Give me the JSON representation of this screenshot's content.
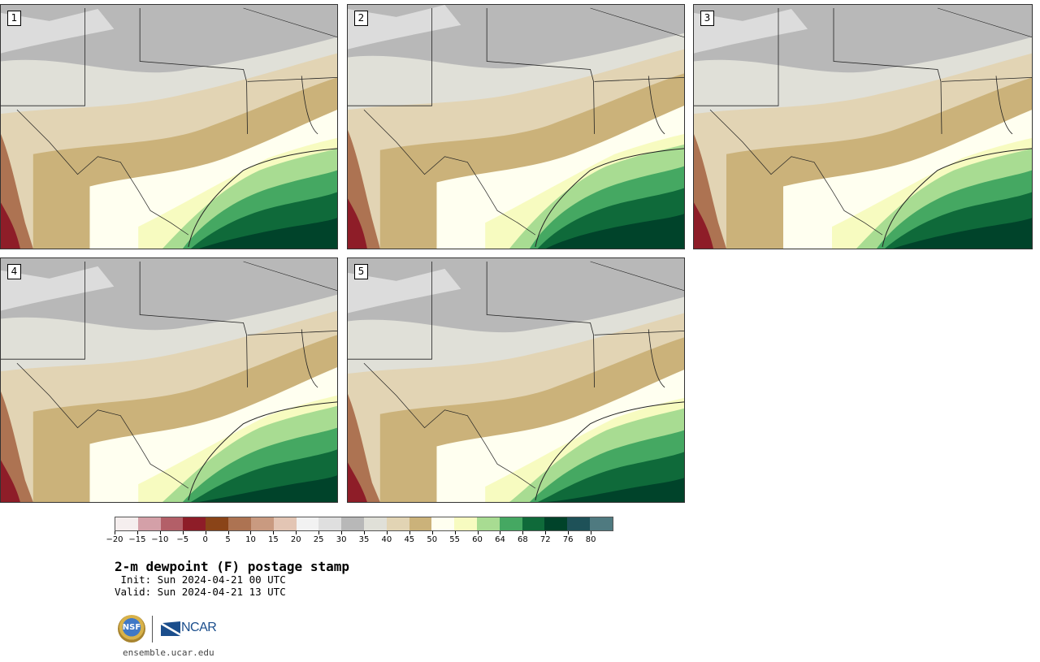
{
  "title": "2-m dewpoint (F) postage stamp",
  "init": " Init: Sun 2024-04-21 00 UTC",
  "valid": "Valid: Sun 2024-04-21 13 UTC",
  "footer_url": "ensemble.ucar.edu",
  "logos": {
    "nsf": "NSF",
    "ncar": "NCAR"
  },
  "panels": [
    {
      "number": "1"
    },
    {
      "number": "2"
    },
    {
      "number": "3"
    },
    {
      "number": "4"
    },
    {
      "number": "5"
    }
  ],
  "colorbar": {
    "ticks": [
      "-20",
      "-15",
      "-10",
      "-5",
      "0",
      "5",
      "10",
      "15",
      "20",
      "25",
      "30",
      "35",
      "40",
      "45",
      "50",
      "55",
      "60",
      "64",
      "68",
      "72",
      "76",
      "80"
    ],
    "colors": [
      "#f5eeee",
      "#d4a0a8",
      "#b35f68",
      "#8e1d28",
      "#8a4418",
      "#ad7352",
      "#c99a80",
      "#e3c5b4",
      "#f2f2f2",
      "#dfdfdf",
      "#b8b8b8",
      "#e0e0d8",
      "#e2d4b4",
      "#cbb27a",
      "#fffff0",
      "#f7fbc0",
      "#a8dc92",
      "#45a862",
      "#0f6a3a",
      "#00432a",
      "#1e5158",
      "#4f7a80"
    ]
  },
  "colors": {
    "gray_north": "#b8b8b8",
    "light_gray": "#dcdcdc",
    "pale": "#e0e0d8",
    "tan_light": "#e2d4b4",
    "tan": "#cbb27a",
    "cream": "#fffff0",
    "pale_yellow": "#f7fbc0",
    "light_green": "#a8dc92",
    "green": "#45a862",
    "dark_green": "#0f6a3a",
    "darkest_green": "#00432a",
    "brown": "#ad7352",
    "red_brown": "#8e1d28"
  }
}
